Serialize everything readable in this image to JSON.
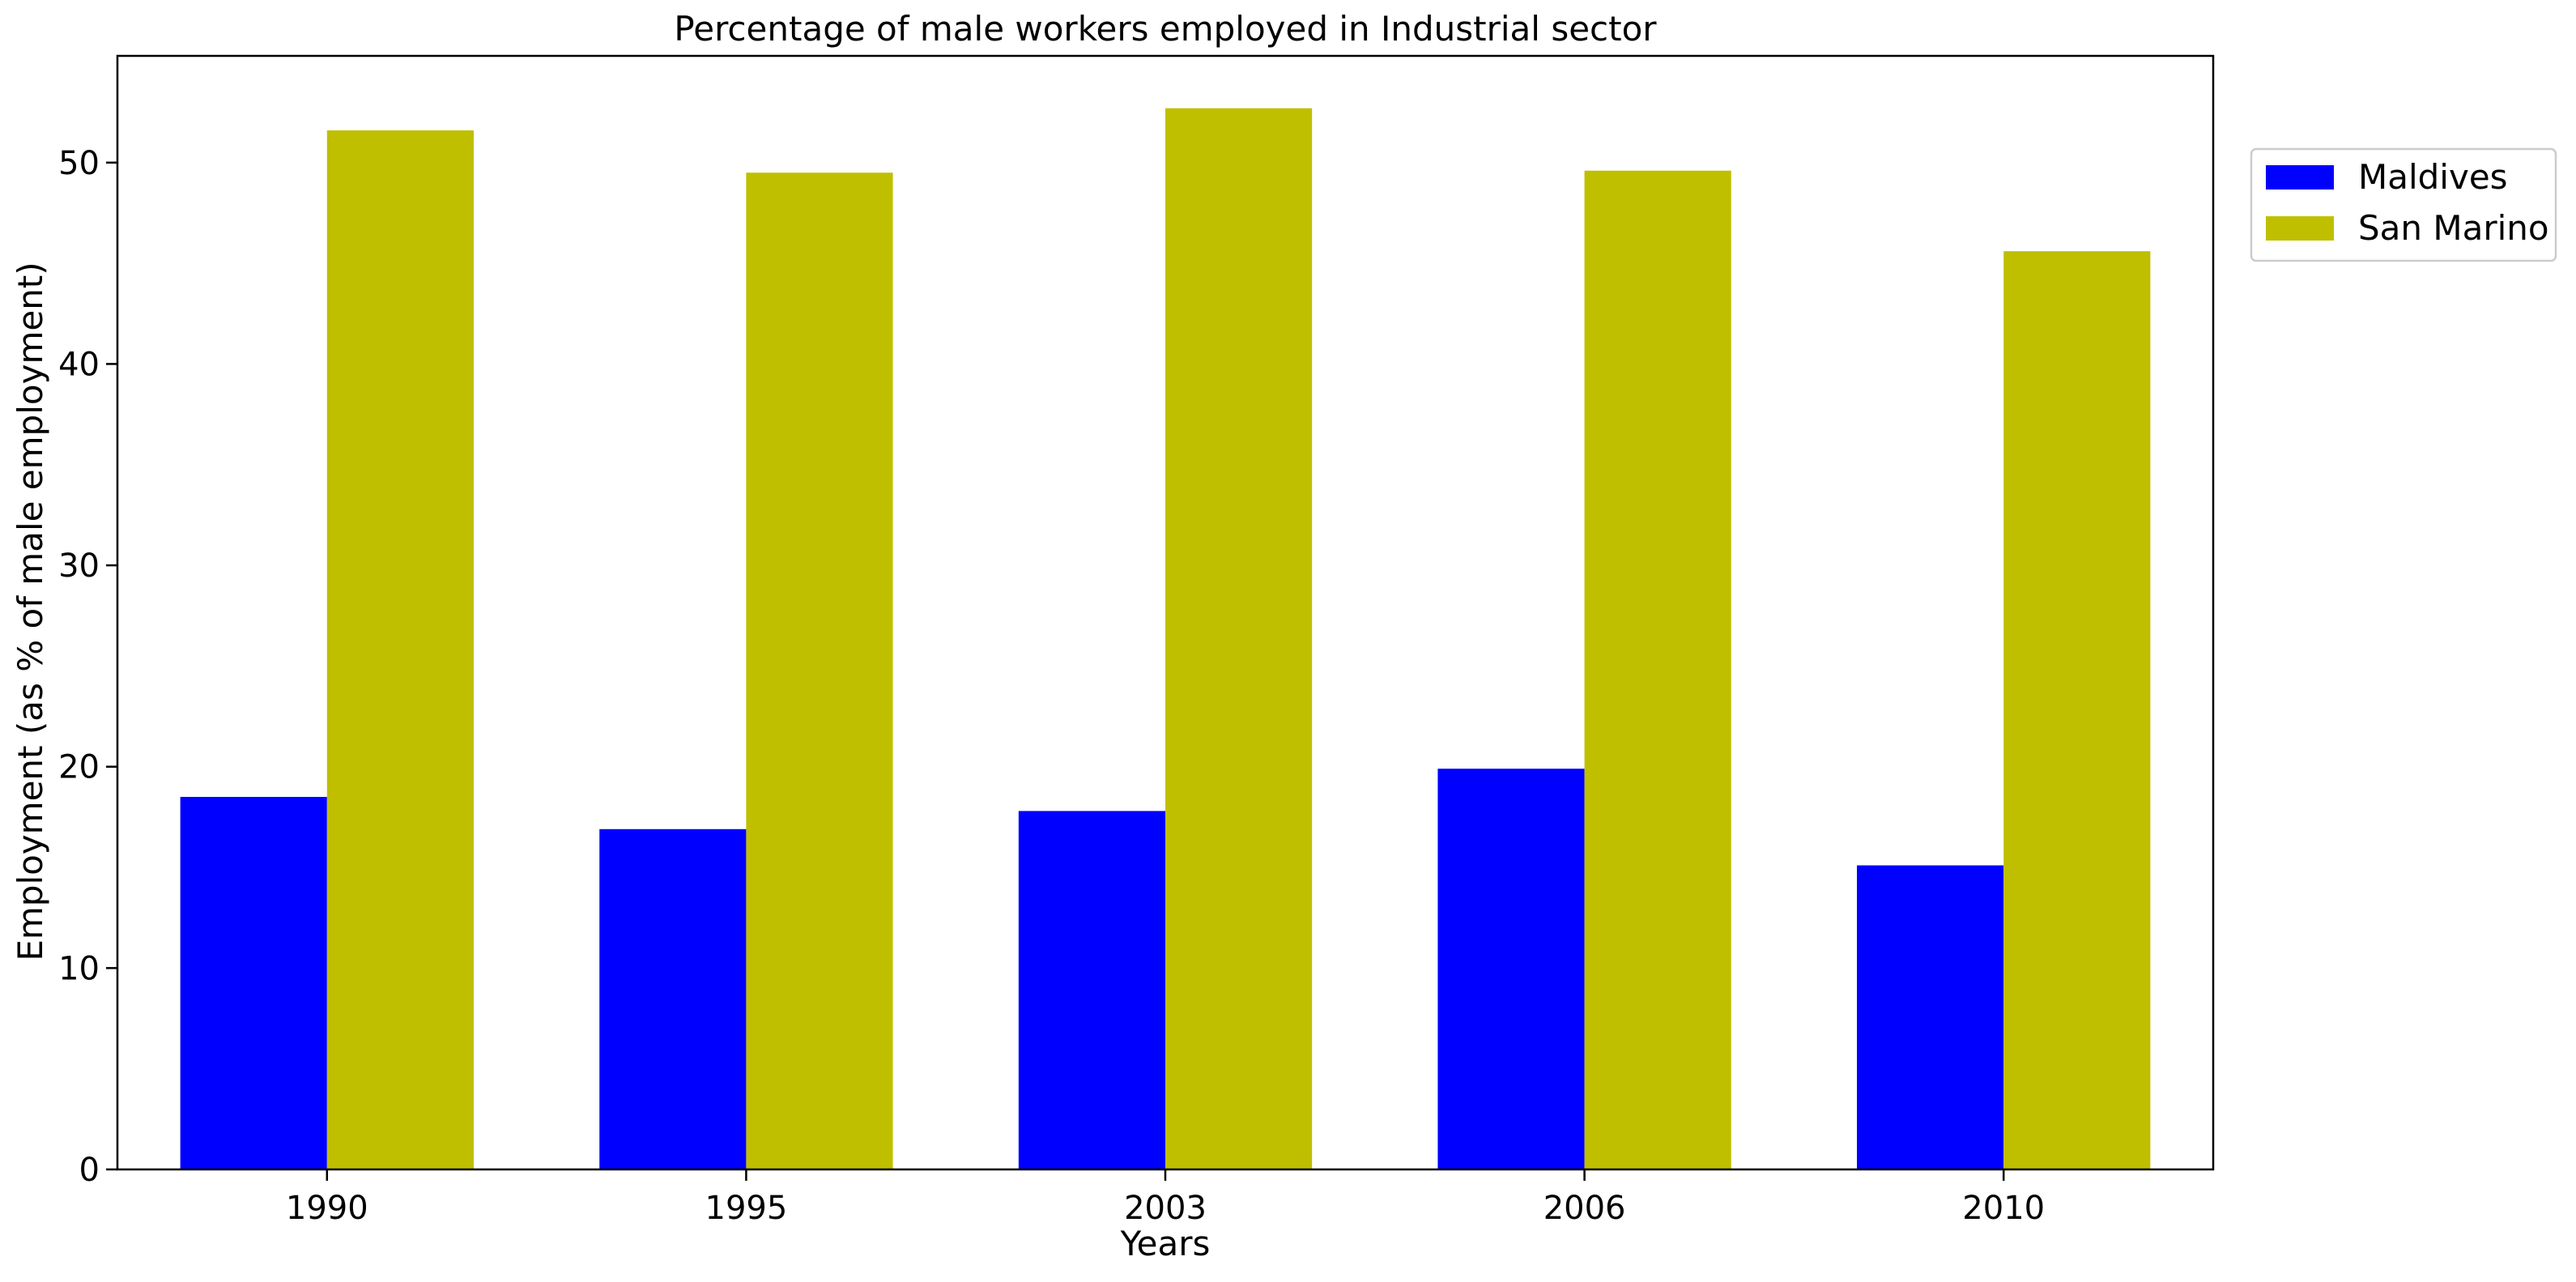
{
  "chart_data": {
    "type": "bar",
    "title": "Percentage of male workers employed in Industrial sector",
    "xlabel": "Years",
    "ylabel": "Employment (as % of male employment)",
    "categories": [
      "1990",
      "1995",
      "2003",
      "2006",
      "2010"
    ],
    "series": [
      {
        "name": "Maldives",
        "color": "#0000ff",
        "values": [
          18.5,
          16.9,
          17.8,
          19.9,
          15.1
        ]
      },
      {
        "name": "San Marino",
        "color": "#bfbf00",
        "values": [
          51.6,
          49.5,
          52.7,
          49.6,
          45.6
        ]
      }
    ],
    "ylim": [
      0,
      55.3
    ],
    "yticks": [
      0,
      10,
      20,
      30,
      40,
      50
    ],
    "grid": false,
    "legend_position": "upper-right-outside"
  }
}
